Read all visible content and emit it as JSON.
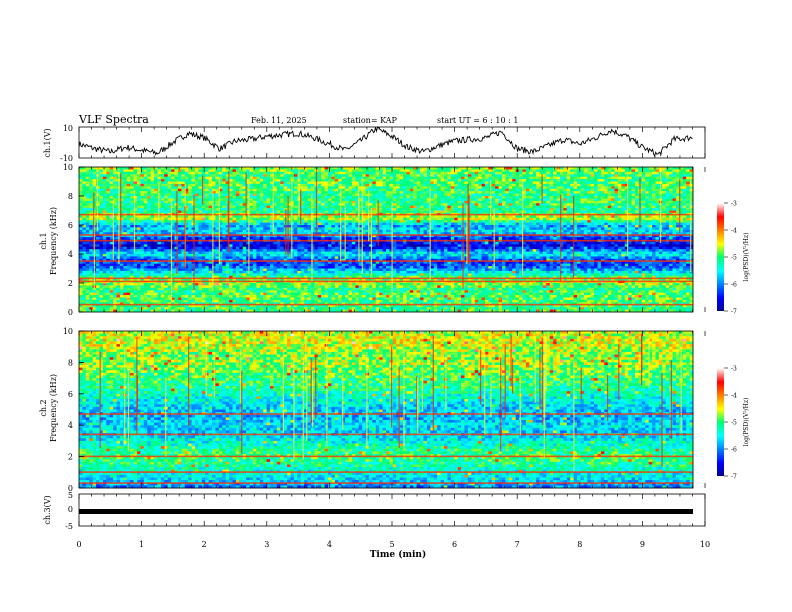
{
  "header": {
    "title": "VLF Spectra",
    "date": "Feb. 11, 2025",
    "station": "station= KAP",
    "start": "start  UT =   6 : 10 : 1"
  },
  "chart_data": [
    {
      "type": "line",
      "panel": "ch1-waveform",
      "ylabel": "ch.1(V)",
      "ylim": [
        -10,
        10
      ],
      "yticks": [
        "10",
        "-10"
      ],
      "xlim": [
        0,
        10
      ],
      "color": "#000000",
      "x": [
        0,
        0.25,
        0.5,
        0.75,
        1,
        1.25,
        1.5,
        1.75,
        2,
        2.25,
        2.5,
        2.75,
        3,
        3.25,
        3.5,
        3.75,
        4,
        4.25,
        4.5,
        4.75,
        5,
        5.25,
        5.5,
        5.75,
        6,
        6.25,
        6.5,
        6.75,
        7,
        7.25,
        7.5,
        7.75,
        8,
        8.25,
        8.5,
        8.75,
        9,
        9.25,
        9.5,
        9.75
      ],
      "y": [
        -1,
        -4,
        -6,
        -3,
        -5,
        -7,
        0,
        6,
        3,
        -4,
        1,
        2,
        4,
        5,
        6,
        3,
        -1,
        -5,
        1,
        9,
        4,
        -3,
        -6,
        -2,
        1,
        2,
        3,
        7,
        -4,
        -6,
        -2,
        2,
        -1,
        3,
        8,
        4,
        -3,
        -8,
        2,
        3
      ]
    },
    {
      "type": "heatmap",
      "panel": "ch1-spectrogram",
      "ylabel": "ch.1\nFrequency (kHz)",
      "ylim": [
        0,
        10
      ],
      "yticks": [
        "0",
        "2",
        "4",
        "6",
        "8",
        "10"
      ],
      "xlim": [
        0,
        10
      ],
      "colorbar": {
        "label": "log(PSD)(V²/Hz)",
        "range": [
          -7,
          -3
        ],
        "ticks": [
          "-3",
          "-4",
          "-5",
          "-6",
          "-7"
        ]
      },
      "frequency_bands_kHz": [
        10,
        9.5,
        9,
        8.5,
        8,
        7.5,
        7,
        6.5,
        6,
        5.5,
        5,
        4.5,
        4,
        3.5,
        3,
        2.5,
        2,
        1.5,
        1,
        0.5,
        0
      ],
      "band_log_psd": [
        -4.8,
        -5.0,
        -4.9,
        -5.0,
        -5.1,
        -5.0,
        -5.2,
        -4.5,
        -5.9,
        -5.6,
        -6.4,
        -6.6,
        -5.5,
        -6.3,
        -6.1,
        -5.2,
        -4.6,
        -5.1,
        -4.9,
        -5.0,
        -5.0
      ],
      "lines_kHz": [
        6.7,
        5.3,
        4.9,
        3.5,
        2.3,
        2.1,
        0.5
      ]
    },
    {
      "type": "heatmap",
      "panel": "ch2-spectrogram",
      "ylabel": "ch.2\nFrequency (kHz)",
      "ylim": [
        0,
        10
      ],
      "yticks": [
        "0",
        "2",
        "4",
        "6",
        "8",
        "10"
      ],
      "xlim": [
        0,
        10
      ],
      "colorbar": {
        "label": "log(PSD)(V²/Hz)",
        "range": [
          -7,
          -3
        ],
        "ticks": [
          "-3",
          "-4",
          "-5",
          "-6",
          "-7"
        ]
      },
      "frequency_bands_kHz": [
        10,
        9.5,
        9,
        8.5,
        8,
        7.5,
        7,
        6.5,
        6,
        5.5,
        5,
        4.5,
        4,
        3.5,
        3,
        2.5,
        2,
        1.5,
        1,
        0.5,
        0
      ],
      "band_log_psd": [
        -4.6,
        -4.5,
        -4.6,
        -4.8,
        -4.7,
        -4.9,
        -5.0,
        -5.1,
        -5.3,
        -5.5,
        -5.7,
        -5.8,
        -5.6,
        -5.7,
        -5.5,
        -5.2,
        -5.0,
        -5.1,
        -5.4,
        -5.6,
        -6.0
      ],
      "lines_kHz": [
        4.7,
        3.4,
        2.0,
        1.0,
        0.3
      ]
    },
    {
      "type": "line",
      "panel": "ch3-waveform",
      "ylabel": "ch.3(V)",
      "ylim": [
        -5,
        5
      ],
      "yticks": [
        "5",
        "0",
        "-5"
      ],
      "xlim": [
        0,
        10
      ],
      "level": -1,
      "color": "#000000"
    }
  ],
  "xaxis": {
    "label": "Time  (min)",
    "ticks": [
      "0",
      "1",
      "2",
      "3",
      "4",
      "5",
      "6",
      "7",
      "8",
      "9",
      "10"
    ]
  }
}
